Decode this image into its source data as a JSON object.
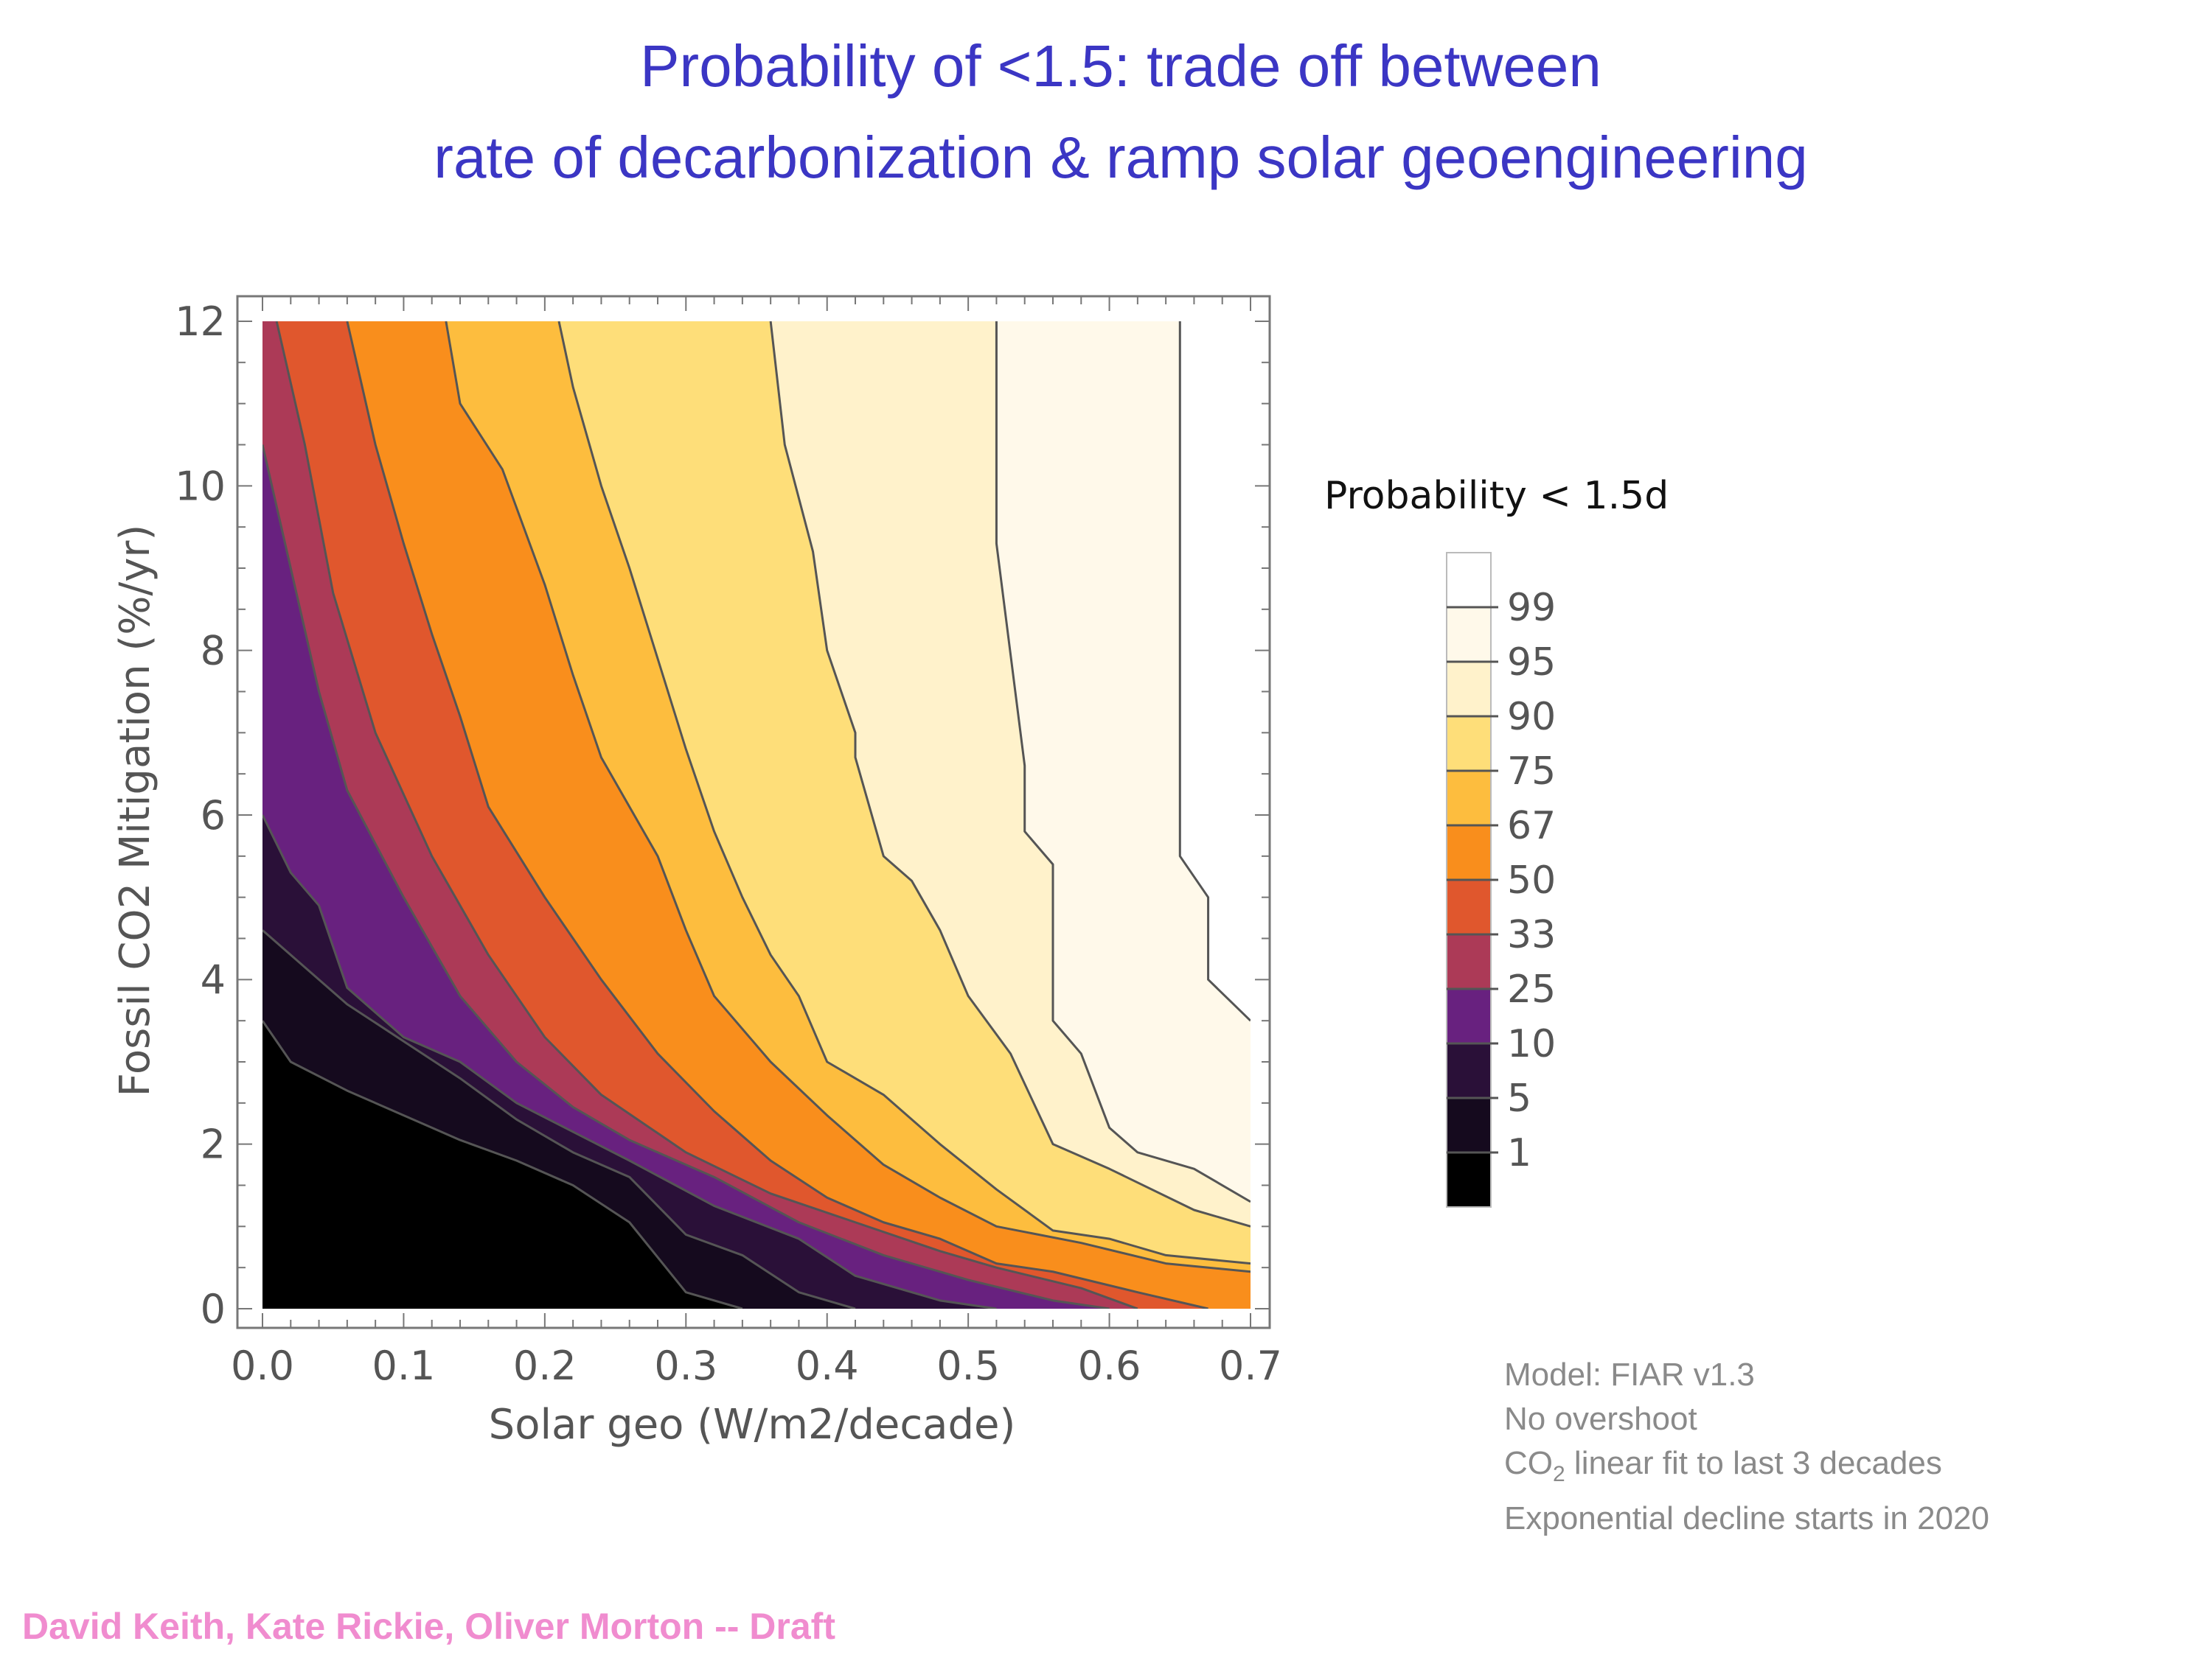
{
  "slide": {
    "title_line1": "Probability of <1.5: trade off between",
    "title_line2": "rate of decarbonization & ramp solar geoengineering",
    "footer": "David Keith, Kate Rickie, Oliver Morton -- Draft"
  },
  "notes": {
    "line1": "Model: FIAR v1.3",
    "line2": "No overshoot",
    "line3_prefix": "CO",
    "line3_sub": "2",
    "line3_suffix": " linear fit to last 3 decades",
    "line4": "Exponential decline starts in 2020"
  },
  "chart_data": {
    "type": "contour",
    "xlabel": "Solar geo (W/m2/decade)",
    "ylabel": "Fossil CO2 Mitigation (%/yr)",
    "xlim": [
      0,
      0.7
    ],
    "ylim": [
      0,
      12
    ],
    "x_ticks": [
      "0.0",
      "0.1",
      "0.2",
      "0.3",
      "0.4",
      "0.5",
      "0.6",
      "0.7"
    ],
    "y_ticks": [
      "0",
      "2",
      "4",
      "6",
      "8",
      "10",
      "12"
    ],
    "legend_title": "Probability < 1.5d",
    "legend_levels": [
      "99",
      "95",
      "90",
      "75",
      "67",
      "50",
      "33",
      "25",
      "10",
      "5",
      "1"
    ],
    "band_colors": [
      "#000000",
      "#150a1e",
      "#2a1038",
      "#68217f",
      "#ac3a57",
      "#e0572d",
      "#f98e1c",
      "#fdbd3e",
      "#fede79",
      "#fff2cb",
      "#fff9ea",
      "#ffffff"
    ],
    "contours": [
      {
        "level": 1,
        "points": [
          [
            0,
            3.5
          ],
          [
            0.02,
            3.0
          ],
          [
            0.06,
            2.65
          ],
          [
            0.1,
            2.35
          ],
          [
            0.14,
            2.05
          ],
          [
            0.18,
            1.8
          ],
          [
            0.22,
            1.5
          ],
          [
            0.26,
            1.05
          ],
          [
            0.3,
            0.2
          ],
          [
            0.34,
            0.0
          ]
        ]
      },
      {
        "level": 5,
        "points": [
          [
            0,
            4.6
          ],
          [
            0.02,
            4.3
          ],
          [
            0.06,
            3.7
          ],
          [
            0.1,
            3.25
          ],
          [
            0.14,
            2.8
          ],
          [
            0.18,
            2.3
          ],
          [
            0.22,
            1.9
          ],
          [
            0.26,
            1.6
          ],
          [
            0.3,
            0.9
          ],
          [
            0.34,
            0.65
          ],
          [
            0.38,
            0.2
          ],
          [
            0.42,
            0.0
          ]
        ]
      },
      {
        "level": 10,
        "points": [
          [
            0,
            6.0
          ],
          [
            0.02,
            5.3
          ],
          [
            0.04,
            4.9
          ],
          [
            0.06,
            3.9
          ],
          [
            0.1,
            3.3
          ],
          [
            0.14,
            3.0
          ],
          [
            0.18,
            2.5
          ],
          [
            0.22,
            2.15
          ],
          [
            0.26,
            1.8
          ],
          [
            0.32,
            1.25
          ],
          [
            0.38,
            0.85
          ],
          [
            0.42,
            0.4
          ],
          [
            0.48,
            0.1
          ],
          [
            0.52,
            0.0
          ]
        ]
      },
      {
        "level": 25,
        "points": [
          [
            0,
            10.5
          ],
          [
            0.02,
            9.0
          ],
          [
            0.04,
            7.5
          ],
          [
            0.06,
            6.3
          ],
          [
            0.1,
            5.0
          ],
          [
            0.14,
            3.8
          ],
          [
            0.18,
            3.0
          ],
          [
            0.22,
            2.45
          ],
          [
            0.26,
            2.05
          ],
          [
            0.32,
            1.6
          ],
          [
            0.38,
            1.05
          ],
          [
            0.44,
            0.65
          ],
          [
            0.5,
            0.35
          ],
          [
            0.56,
            0.1
          ],
          [
            0.6,
            0.0
          ]
        ]
      },
      {
        "level": 33,
        "points": [
          [
            0.01,
            12.0
          ],
          [
            0.03,
            10.5
          ],
          [
            0.05,
            8.7
          ],
          [
            0.08,
            7.0
          ],
          [
            0.12,
            5.5
          ],
          [
            0.16,
            4.3
          ],
          [
            0.2,
            3.3
          ],
          [
            0.24,
            2.6
          ],
          [
            0.3,
            1.9
          ],
          [
            0.36,
            1.4
          ],
          [
            0.42,
            1.05
          ],
          [
            0.48,
            0.7
          ],
          [
            0.52,
            0.5
          ],
          [
            0.58,
            0.25
          ],
          [
            0.62,
            0.0
          ]
        ]
      },
      {
        "level": 50,
        "points": [
          [
            0.06,
            12.0
          ],
          [
            0.08,
            10.5
          ],
          [
            0.1,
            9.3
          ],
          [
            0.12,
            8.2
          ],
          [
            0.14,
            7.2
          ],
          [
            0.16,
            6.1
          ],
          [
            0.2,
            5.0
          ],
          [
            0.24,
            4.0
          ],
          [
            0.28,
            3.1
          ],
          [
            0.32,
            2.4
          ],
          [
            0.36,
            1.8
          ],
          [
            0.4,
            1.35
          ],
          [
            0.44,
            1.05
          ],
          [
            0.48,
            0.85
          ],
          [
            0.52,
            0.55
          ],
          [
            0.56,
            0.45
          ],
          [
            0.62,
            0.2
          ],
          [
            0.67,
            0.0
          ]
        ]
      },
      {
        "level": 67,
        "points": [
          [
            0.13,
            12.0
          ],
          [
            0.14,
            11.0
          ],
          [
            0.17,
            10.2
          ],
          [
            0.2,
            8.8
          ],
          [
            0.22,
            7.7
          ],
          [
            0.24,
            6.7
          ],
          [
            0.28,
            5.5
          ],
          [
            0.3,
            4.6
          ],
          [
            0.32,
            3.8
          ],
          [
            0.36,
            3.0
          ],
          [
            0.4,
            2.35
          ],
          [
            0.44,
            1.75
          ],
          [
            0.48,
            1.35
          ],
          [
            0.52,
            1.0
          ],
          [
            0.58,
            0.8
          ],
          [
            0.64,
            0.55
          ],
          [
            0.7,
            0.45
          ]
        ]
      },
      {
        "level": 75,
        "points": [
          [
            0.21,
            12.0
          ],
          [
            0.22,
            11.2
          ],
          [
            0.24,
            10.0
          ],
          [
            0.26,
            9.0
          ],
          [
            0.28,
            7.9
          ],
          [
            0.3,
            6.8
          ],
          [
            0.32,
            5.8
          ],
          [
            0.34,
            5.0
          ],
          [
            0.36,
            4.3
          ],
          [
            0.38,
            3.8
          ],
          [
            0.4,
            3.0
          ],
          [
            0.44,
            2.6
          ],
          [
            0.48,
            2.0
          ],
          [
            0.52,
            1.45
          ],
          [
            0.56,
            0.95
          ],
          [
            0.6,
            0.85
          ],
          [
            0.64,
            0.65
          ],
          [
            0.7,
            0.55
          ]
        ]
      },
      {
        "level": 90,
        "points": [
          [
            0.36,
            12.0
          ],
          [
            0.37,
            10.5
          ],
          [
            0.39,
            9.2
          ],
          [
            0.4,
            8.0
          ],
          [
            0.42,
            7.0
          ],
          [
            0.42,
            6.7
          ],
          [
            0.44,
            5.5
          ],
          [
            0.46,
            5.2
          ],
          [
            0.48,
            4.6
          ],
          [
            0.5,
            3.8
          ],
          [
            0.53,
            3.1
          ],
          [
            0.56,
            2.0
          ],
          [
            0.6,
            1.7
          ],
          [
            0.66,
            1.2
          ],
          [
            0.7,
            1.0
          ]
        ]
      },
      {
        "level": 95,
        "points": [
          [
            0.52,
            12.0
          ],
          [
            0.52,
            10.0
          ],
          [
            0.52,
            9.3
          ],
          [
            0.54,
            6.6
          ],
          [
            0.54,
            5.8
          ],
          [
            0.56,
            5.4
          ],
          [
            0.56,
            3.5
          ],
          [
            0.58,
            3.1
          ],
          [
            0.6,
            2.2
          ],
          [
            0.62,
            1.9
          ],
          [
            0.66,
            1.7
          ],
          [
            0.7,
            1.3
          ]
        ]
      },
      {
        "level": 99,
        "points": [
          [
            0.65,
            12.0
          ],
          [
            0.65,
            5.5
          ],
          [
            0.67,
            5.0
          ],
          [
            0.67,
            4.0
          ],
          [
            0.7,
            3.5
          ]
        ]
      }
    ]
  }
}
